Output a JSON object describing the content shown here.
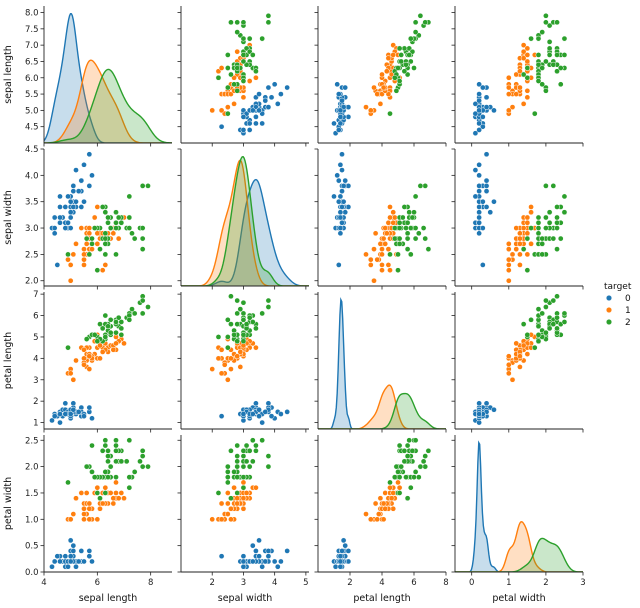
{
  "chart_data": {
    "type": "scatter",
    "subtype": "pairplot",
    "variables": [
      "sepal length",
      "sepal width",
      "petal length",
      "petal width"
    ],
    "axis_labels": [
      "sepal length",
      "sepal width",
      "petal length",
      "petal width"
    ],
    "ranges": [
      [
        4.0,
        8.2
      ],
      [
        1.9,
        4.5
      ],
      [
        0.7,
        7.1
      ],
      [
        0.0,
        2.6
      ]
    ],
    "x_ranges": [
      [
        4.0,
        8.8
      ],
      [
        1.0,
        5.1
      ],
      [
        0.0,
        8.0
      ],
      [
        -0.45,
        3.0
      ]
    ],
    "ticks": [
      [
        4.5,
        5.0,
        5.5,
        6.0,
        6.5,
        7.0,
        7.5,
        8.0
      ],
      [
        2.0,
        2.5,
        3.0,
        3.5,
        4.0,
        4.5
      ],
      [
        1,
        2,
        3,
        4,
        5,
        6,
        7
      ],
      [
        0.0,
        0.5,
        1.0,
        1.5,
        2.0,
        2.5
      ]
    ],
    "x_ticks": [
      [
        4,
        6,
        8
      ],
      [
        2,
        3,
        4,
        5
      ],
      [
        2,
        4,
        6,
        8
      ],
      [
        0,
        1,
        2,
        3
      ]
    ],
    "tick_labels": [
      [
        "4.5",
        "5.0",
        "5.5",
        "6.0",
        "6.5",
        "7.0",
        "7.5",
        "8.0"
      ],
      [
        "2.0",
        "2.5",
        "3.0",
        "3.5",
        "4.0",
        "4.5"
      ],
      [
        "1",
        "2",
        "3",
        "4",
        "5",
        "6",
        "7"
      ],
      [
        "0.0",
        "0.5",
        "1.0",
        "1.5",
        "2.0",
        "2.5"
      ]
    ],
    "x_tick_labels": [
      [
        "4",
        "6",
        "8"
      ],
      [
        "2",
        "3",
        "4",
        "5"
      ],
      [
        "2",
        "4",
        "6",
        "8"
      ],
      [
        "0",
        "1",
        "2",
        "3"
      ]
    ],
    "diagonal": "kde",
    "legend": {
      "title": "target",
      "placement": "right",
      "entries": [
        {
          "label": "0",
          "color": "#1f77b4"
        },
        {
          "label": "1",
          "color": "#ff7f0e"
        },
        {
          "label": "2",
          "color": "#2ca02c"
        }
      ]
    },
    "grid": false,
    "series": [
      {
        "name": "0",
        "color": "#1f77b4",
        "points": [
          [
            5.1,
            3.5,
            1.4,
            0.2
          ],
          [
            4.9,
            3.0,
            1.4,
            0.2
          ],
          [
            4.7,
            3.2,
            1.3,
            0.2
          ],
          [
            4.6,
            3.1,
            1.5,
            0.2
          ],
          [
            5.0,
            3.6,
            1.4,
            0.2
          ],
          [
            5.4,
            3.9,
            1.7,
            0.4
          ],
          [
            4.6,
            3.4,
            1.4,
            0.3
          ],
          [
            5.0,
            3.4,
            1.5,
            0.2
          ],
          [
            4.4,
            2.9,
            1.4,
            0.2
          ],
          [
            4.9,
            3.1,
            1.5,
            0.1
          ],
          [
            5.4,
            3.7,
            1.5,
            0.2
          ],
          [
            4.8,
            3.4,
            1.6,
            0.2
          ],
          [
            4.8,
            3.0,
            1.4,
            0.1
          ],
          [
            4.3,
            3.0,
            1.1,
            0.1
          ],
          [
            5.8,
            4.0,
            1.2,
            0.2
          ],
          [
            5.7,
            4.4,
            1.5,
            0.4
          ],
          [
            5.4,
            3.9,
            1.3,
            0.4
          ],
          [
            5.1,
            3.5,
            1.4,
            0.3
          ],
          [
            5.7,
            3.8,
            1.7,
            0.3
          ],
          [
            5.1,
            3.8,
            1.5,
            0.3
          ],
          [
            5.4,
            3.4,
            1.7,
            0.2
          ],
          [
            5.1,
            3.7,
            1.5,
            0.4
          ],
          [
            4.6,
            3.6,
            1.0,
            0.2
          ],
          [
            5.1,
            3.3,
            1.7,
            0.5
          ],
          [
            4.8,
            3.4,
            1.9,
            0.2
          ],
          [
            5.0,
            3.0,
            1.6,
            0.2
          ],
          [
            5.0,
            3.4,
            1.6,
            0.4
          ],
          [
            5.2,
            3.5,
            1.5,
            0.2
          ],
          [
            5.2,
            3.4,
            1.4,
            0.2
          ],
          [
            4.7,
            3.2,
            1.6,
            0.2
          ],
          [
            4.8,
            3.1,
            1.6,
            0.2
          ],
          [
            5.4,
            3.4,
            1.5,
            0.4
          ],
          [
            5.2,
            4.1,
            1.5,
            0.1
          ],
          [
            5.5,
            4.2,
            1.4,
            0.2
          ],
          [
            4.9,
            3.1,
            1.5,
            0.2
          ],
          [
            5.0,
            3.2,
            1.2,
            0.2
          ],
          [
            5.5,
            3.5,
            1.3,
            0.2
          ],
          [
            4.9,
            3.6,
            1.4,
            0.1
          ],
          [
            4.4,
            3.0,
            1.3,
            0.2
          ],
          [
            5.1,
            3.4,
            1.5,
            0.2
          ],
          [
            5.0,
            3.5,
            1.3,
            0.3
          ],
          [
            4.5,
            2.3,
            1.3,
            0.3
          ],
          [
            4.4,
            3.2,
            1.3,
            0.2
          ],
          [
            5.0,
            3.5,
            1.6,
            0.6
          ],
          [
            5.1,
            3.8,
            1.9,
            0.4
          ],
          [
            4.8,
            3.0,
            1.4,
            0.3
          ],
          [
            5.1,
            3.8,
            1.6,
            0.2
          ],
          [
            4.6,
            3.2,
            1.4,
            0.2
          ],
          [
            5.3,
            3.7,
            1.5,
            0.2
          ],
          [
            5.0,
            3.3,
            1.4,
            0.2
          ]
        ]
      },
      {
        "name": "1",
        "color": "#ff7f0e",
        "points": [
          [
            7.0,
            3.2,
            4.7,
            1.4
          ],
          [
            6.4,
            3.2,
            4.5,
            1.5
          ],
          [
            6.9,
            3.1,
            4.9,
            1.5
          ],
          [
            5.5,
            2.3,
            4.0,
            1.3
          ],
          [
            6.5,
            2.8,
            4.6,
            1.5
          ],
          [
            5.7,
            2.8,
            4.5,
            1.3
          ],
          [
            6.3,
            3.3,
            4.7,
            1.6
          ],
          [
            4.9,
            2.4,
            3.3,
            1.0
          ],
          [
            6.6,
            2.9,
            4.6,
            1.3
          ],
          [
            5.2,
            2.7,
            3.9,
            1.4
          ],
          [
            5.0,
            2.0,
            3.5,
            1.0
          ],
          [
            5.9,
            3.0,
            4.2,
            1.5
          ],
          [
            6.0,
            2.2,
            4.0,
            1.0
          ],
          [
            6.1,
            2.9,
            4.7,
            1.4
          ],
          [
            5.6,
            2.9,
            3.6,
            1.3
          ],
          [
            6.7,
            3.1,
            4.4,
            1.4
          ],
          [
            5.6,
            3.0,
            4.5,
            1.5
          ],
          [
            5.8,
            2.7,
            4.1,
            1.0
          ],
          [
            6.2,
            2.2,
            4.5,
            1.5
          ],
          [
            5.6,
            2.5,
            3.9,
            1.1
          ],
          [
            5.9,
            3.2,
            4.8,
            1.8
          ],
          [
            6.1,
            2.8,
            4.0,
            1.3
          ],
          [
            6.3,
            2.5,
            4.9,
            1.5
          ],
          [
            6.1,
            2.8,
            4.7,
            1.2
          ],
          [
            6.4,
            2.9,
            4.3,
            1.3
          ],
          [
            6.6,
            3.0,
            4.4,
            1.4
          ],
          [
            6.8,
            2.8,
            4.8,
            1.4
          ],
          [
            6.7,
            3.0,
            5.0,
            1.7
          ],
          [
            6.0,
            2.9,
            4.5,
            1.5
          ],
          [
            5.7,
            2.6,
            3.5,
            1.0
          ],
          [
            5.5,
            2.4,
            3.8,
            1.1
          ],
          [
            5.5,
            2.4,
            3.7,
            1.0
          ],
          [
            5.8,
            2.7,
            3.9,
            1.2
          ],
          [
            6.0,
            2.7,
            5.1,
            1.6
          ],
          [
            5.4,
            3.0,
            4.5,
            1.5
          ],
          [
            6.0,
            3.4,
            4.5,
            1.6
          ],
          [
            6.7,
            3.1,
            4.7,
            1.5
          ],
          [
            6.3,
            2.3,
            4.4,
            1.3
          ],
          [
            5.6,
            3.0,
            4.1,
            1.3
          ],
          [
            5.5,
            2.5,
            4.0,
            1.3
          ],
          [
            5.5,
            2.6,
            4.4,
            1.2
          ],
          [
            6.1,
            3.0,
            4.6,
            1.4
          ],
          [
            5.8,
            2.6,
            4.0,
            1.2
          ],
          [
            5.0,
            2.3,
            3.3,
            1.0
          ],
          [
            5.6,
            2.7,
            4.2,
            1.3
          ],
          [
            5.7,
            3.0,
            4.2,
            1.2
          ],
          [
            5.7,
            2.9,
            4.2,
            1.3
          ],
          [
            6.2,
            2.9,
            4.3,
            1.3
          ],
          [
            5.1,
            2.5,
            3.0,
            1.1
          ],
          [
            5.7,
            2.8,
            4.1,
            1.3
          ]
        ]
      },
      {
        "name": "2",
        "color": "#2ca02c",
        "points": [
          [
            6.3,
            3.3,
            6.0,
            2.5
          ],
          [
            5.8,
            2.7,
            5.1,
            1.9
          ],
          [
            7.1,
            3.0,
            5.9,
            2.1
          ],
          [
            6.3,
            2.9,
            5.6,
            1.8
          ],
          [
            6.5,
            3.0,
            5.8,
            2.2
          ],
          [
            7.6,
            3.0,
            6.6,
            2.1
          ],
          [
            4.9,
            2.5,
            4.5,
            1.7
          ],
          [
            7.3,
            2.9,
            6.3,
            1.8
          ],
          [
            6.7,
            2.5,
            5.8,
            1.8
          ],
          [
            7.2,
            3.6,
            6.1,
            2.5
          ],
          [
            6.5,
            3.2,
            5.1,
            2.0
          ],
          [
            6.4,
            2.7,
            5.3,
            1.9
          ],
          [
            6.8,
            3.0,
            5.5,
            2.1
          ],
          [
            5.7,
            2.5,
            5.0,
            2.0
          ],
          [
            5.8,
            2.8,
            5.1,
            2.4
          ],
          [
            6.4,
            3.2,
            5.3,
            2.3
          ],
          [
            6.5,
            3.0,
            5.5,
            1.8
          ],
          [
            7.7,
            3.8,
            6.7,
            2.2
          ],
          [
            7.7,
            2.6,
            6.9,
            2.3
          ],
          [
            6.0,
            2.2,
            5.0,
            1.5
          ],
          [
            6.9,
            3.2,
            5.7,
            2.3
          ],
          [
            5.6,
            2.8,
            4.9,
            2.0
          ],
          [
            7.7,
            2.8,
            6.7,
            2.0
          ],
          [
            6.3,
            2.7,
            4.9,
            1.8
          ],
          [
            6.7,
            3.3,
            5.7,
            2.1
          ],
          [
            7.2,
            3.2,
            6.0,
            1.8
          ],
          [
            6.2,
            2.8,
            4.8,
            1.8
          ],
          [
            6.1,
            3.0,
            4.9,
            1.8
          ],
          [
            6.4,
            2.8,
            5.6,
            2.1
          ],
          [
            7.2,
            3.0,
            5.8,
            1.6
          ],
          [
            7.4,
            2.8,
            6.1,
            1.9
          ],
          [
            7.9,
            3.8,
            6.4,
            2.0
          ],
          [
            6.4,
            2.8,
            5.6,
            2.2
          ],
          [
            6.3,
            2.8,
            5.1,
            1.5
          ],
          [
            6.1,
            2.6,
            5.6,
            1.4
          ],
          [
            7.7,
            3.0,
            6.1,
            2.3
          ],
          [
            6.3,
            3.4,
            5.6,
            2.4
          ],
          [
            6.4,
            3.1,
            5.5,
            1.8
          ],
          [
            6.0,
            3.0,
            4.8,
            1.8
          ],
          [
            6.9,
            3.1,
            5.4,
            2.1
          ],
          [
            6.7,
            3.1,
            5.6,
            2.4
          ],
          [
            6.9,
            3.1,
            5.1,
            2.3
          ],
          [
            5.8,
            2.7,
            5.1,
            1.9
          ],
          [
            6.8,
            3.2,
            5.9,
            2.3
          ],
          [
            6.7,
            3.3,
            5.7,
            2.5
          ],
          [
            6.7,
            3.0,
            5.2,
            2.3
          ],
          [
            6.3,
            2.5,
            5.0,
            1.9
          ],
          [
            6.5,
            3.0,
            5.2,
            2.0
          ],
          [
            6.2,
            3.4,
            5.4,
            2.3
          ],
          [
            5.9,
            3.0,
            5.1,
            1.8
          ]
        ]
      }
    ]
  }
}
